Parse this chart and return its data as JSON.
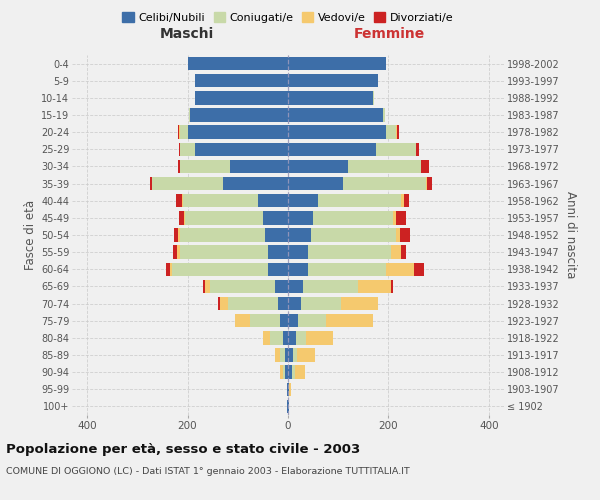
{
  "age_groups": [
    "100+",
    "95-99",
    "90-94",
    "85-89",
    "80-84",
    "75-79",
    "70-74",
    "65-69",
    "60-64",
    "55-59",
    "50-54",
    "45-49",
    "40-44",
    "35-39",
    "30-34",
    "25-29",
    "20-24",
    "15-19",
    "10-14",
    "5-9",
    "0-4"
  ],
  "birth_years": [
    "≤ 1902",
    "1903-1907",
    "1908-1912",
    "1913-1917",
    "1918-1922",
    "1923-1927",
    "1928-1932",
    "1933-1937",
    "1938-1942",
    "1943-1947",
    "1948-1952",
    "1953-1957",
    "1958-1962",
    "1963-1967",
    "1968-1972",
    "1973-1977",
    "1978-1982",
    "1983-1987",
    "1988-1992",
    "1993-1997",
    "1998-2002"
  ],
  "male_celibi": [
    1,
    1,
    5,
    5,
    10,
    15,
    20,
    25,
    40,
    40,
    45,
    50,
    60,
    130,
    115,
    185,
    200,
    195,
    185,
    185,
    200
  ],
  "male_coniugati": [
    0,
    0,
    5,
    10,
    25,
    60,
    100,
    130,
    190,
    175,
    170,
    155,
    150,
    140,
    100,
    30,
    15,
    2,
    1,
    0,
    0
  ],
  "male_vedovi": [
    0,
    1,
    5,
    10,
    15,
    30,
    15,
    10,
    5,
    5,
    3,
    2,
    1,
    0,
    0,
    0,
    2,
    0,
    0,
    0,
    0
  ],
  "male_divorziati": [
    0,
    0,
    0,
    0,
    0,
    0,
    5,
    5,
    8,
    8,
    8,
    10,
    12,
    5,
    3,
    2,
    2,
    0,
    0,
    0,
    0
  ],
  "female_celibi": [
    1,
    2,
    8,
    10,
    15,
    20,
    25,
    30,
    40,
    40,
    45,
    50,
    60,
    110,
    120,
    175,
    195,
    190,
    170,
    180,
    195
  ],
  "female_coniugati": [
    0,
    0,
    5,
    8,
    20,
    55,
    80,
    110,
    155,
    165,
    170,
    160,
    165,
    165,
    145,
    80,
    20,
    3,
    1,
    0,
    0
  ],
  "female_vedovi": [
    1,
    3,
    20,
    35,
    55,
    95,
    75,
    65,
    55,
    20,
    8,
    5,
    5,
    2,
    0,
    0,
    2,
    0,
    0,
    0,
    0
  ],
  "female_divorziati": [
    0,
    0,
    0,
    0,
    0,
    0,
    0,
    5,
    20,
    10,
    20,
    20,
    10,
    10,
    15,
    5,
    3,
    0,
    0,
    0,
    0
  ],
  "colors": {
    "celibi": "#3d6ea8",
    "coniugati": "#c8d9a8",
    "vedovi": "#f5c96e",
    "divorziati": "#cc2222"
  },
  "title": "Popolazione per età, sesso e stato civile - 2003",
  "subtitle": "COMUNE DI OGGIONO (LC) - Dati ISTAT 1° gennaio 2003 - Elaborazione TUTTITALIA.IT",
  "xlabel_left": "Maschi",
  "xlabel_right": "Femmine",
  "ylabel_left": "Fasce di età",
  "ylabel_right": "Anni di nascita",
  "xlim": 430,
  "legend_labels": [
    "Celibi/Nubili",
    "Coniugati/e",
    "Vedovi/e",
    "Divorziati/e"
  ],
  "background_color": "#f0f0f0",
  "grid_color": "#cccccc"
}
